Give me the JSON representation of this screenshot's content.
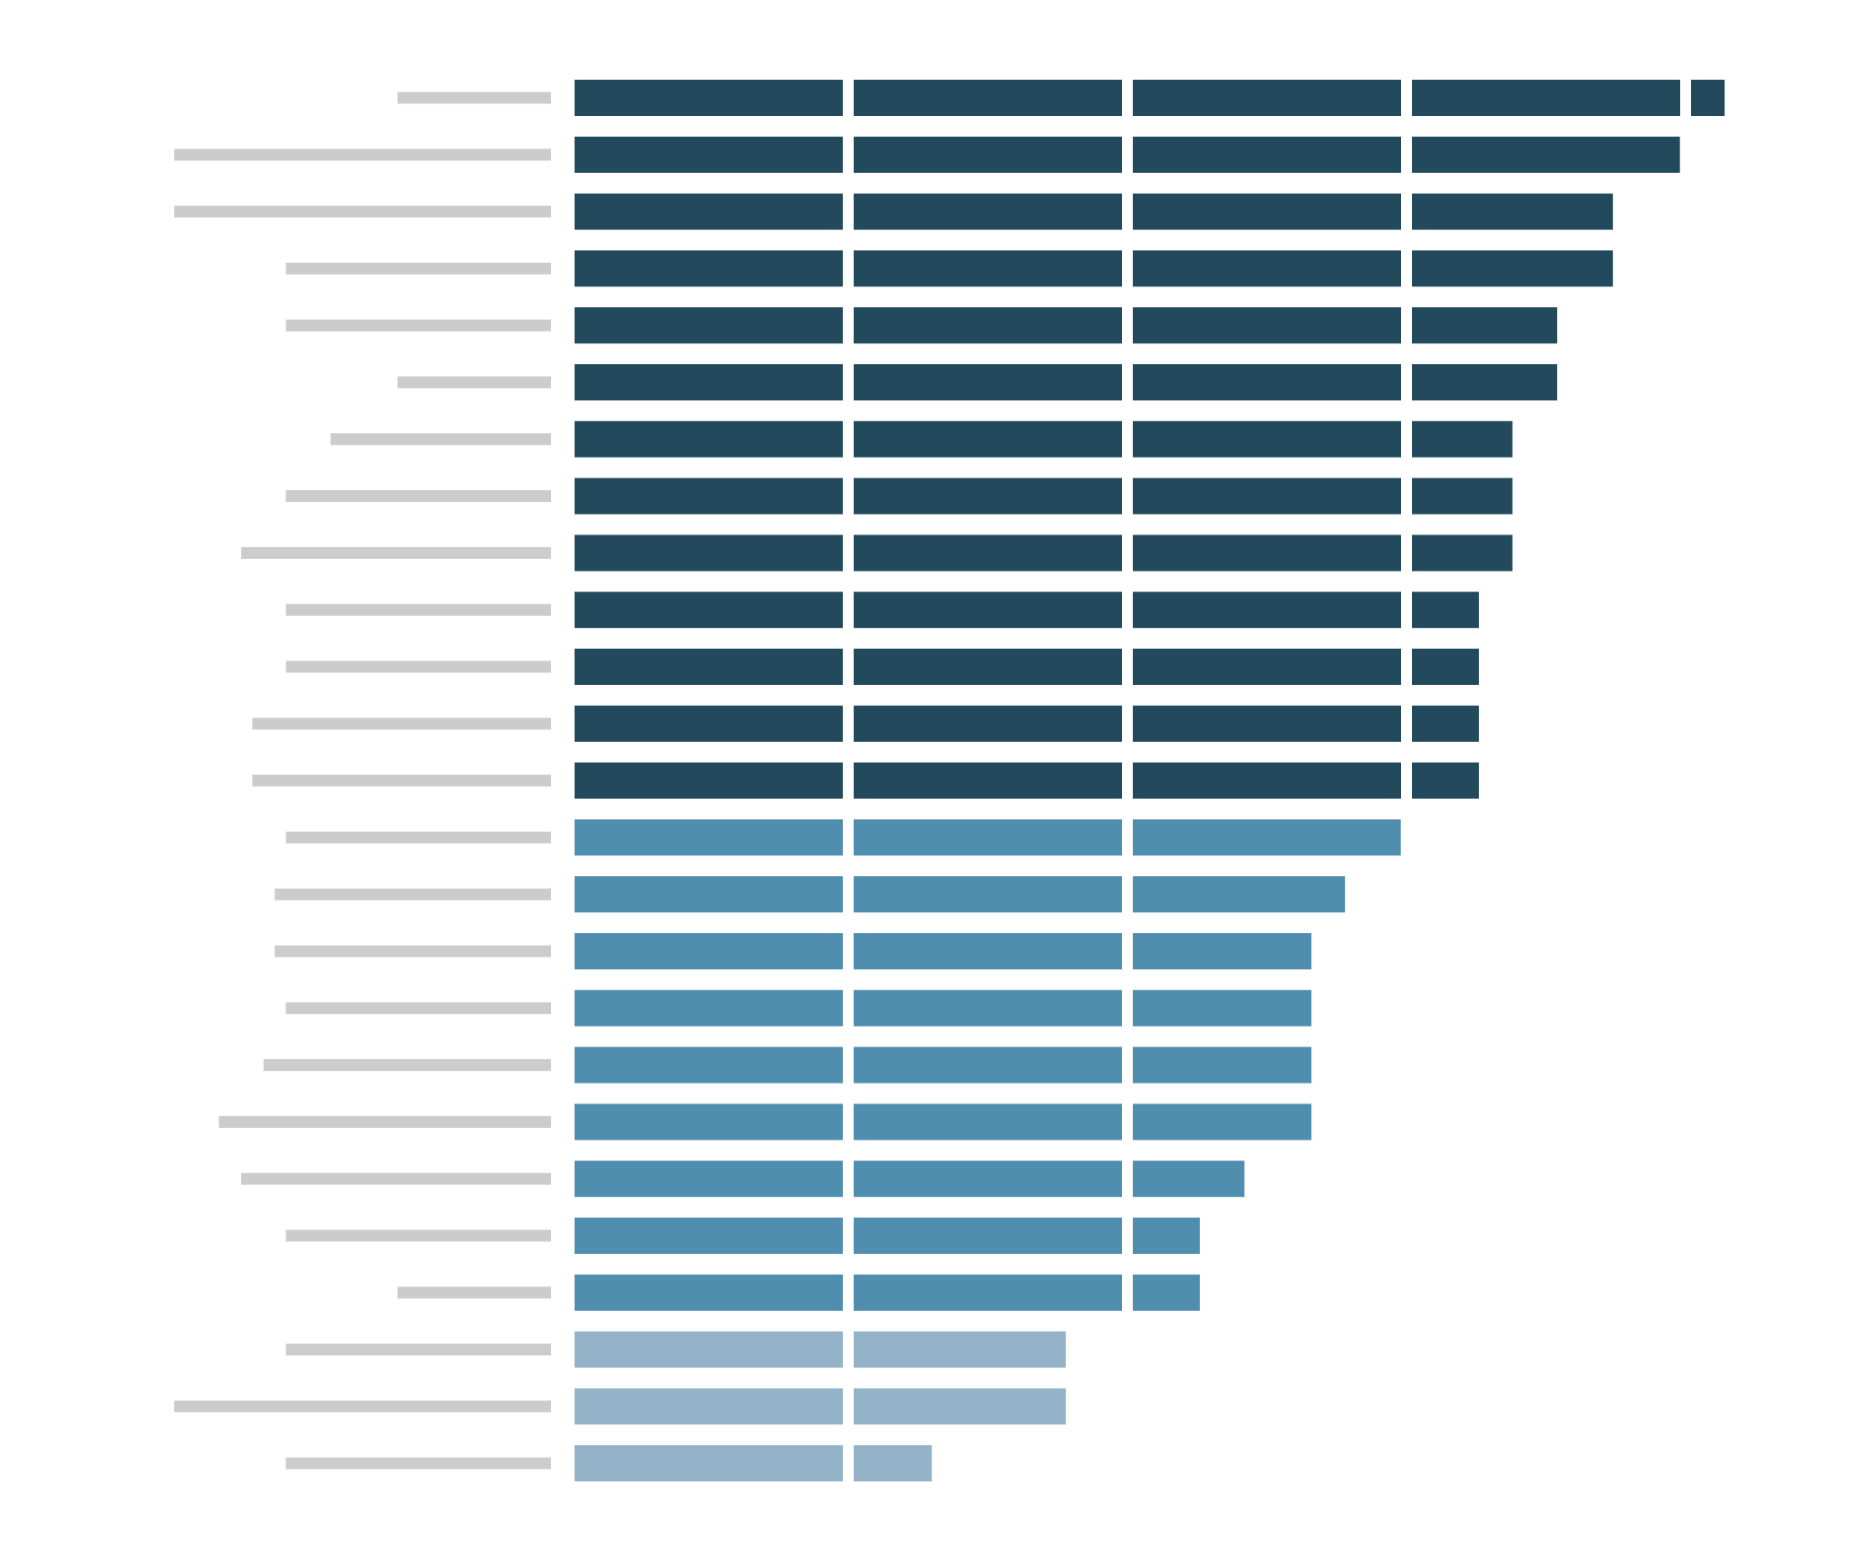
{
  "chart_data": {
    "type": "bar",
    "orientation": "horizontal",
    "stacked_segments": true,
    "segment_unit": 1,
    "grid": false,
    "legend": "none",
    "xlim": [
      0,
      4.2
    ],
    "title": "",
    "xlabel": "",
    "ylabel": "",
    "label_placeholders": true,
    "colors": {
      "dark": "#234a5c",
      "mid": "#4f8eae",
      "light": "#94b3c8",
      "label_placeholder": "#cccccc"
    },
    "bars": [
      {
        "value": 4.12,
        "group": "dark"
      },
      {
        "value": 3.96,
        "group": "dark"
      },
      {
        "value": 3.72,
        "group": "dark"
      },
      {
        "value": 3.72,
        "group": "dark"
      },
      {
        "value": 3.52,
        "group": "dark"
      },
      {
        "value": 3.52,
        "group": "dark"
      },
      {
        "value": 3.36,
        "group": "dark"
      },
      {
        "value": 3.36,
        "group": "dark"
      },
      {
        "value": 3.36,
        "group": "dark"
      },
      {
        "value": 3.24,
        "group": "dark"
      },
      {
        "value": 3.24,
        "group": "dark"
      },
      {
        "value": 3.24,
        "group": "dark"
      },
      {
        "value": 3.24,
        "group": "dark"
      },
      {
        "value": 2.96,
        "group": "mid"
      },
      {
        "value": 2.76,
        "group": "mid"
      },
      {
        "value": 2.64,
        "group": "mid"
      },
      {
        "value": 2.64,
        "group": "mid"
      },
      {
        "value": 2.64,
        "group": "mid"
      },
      {
        "value": 2.64,
        "group": "mid"
      },
      {
        "value": 2.4,
        "group": "mid"
      },
      {
        "value": 2.24,
        "group": "mid"
      },
      {
        "value": 2.24,
        "group": "mid"
      },
      {
        "value": 1.76,
        "group": "light"
      },
      {
        "value": 1.76,
        "group": "light"
      },
      {
        "value": 1.28,
        "group": "light"
      }
    ],
    "label_lengths": [
      0.55,
      1.35,
      1.35,
      0.95,
      0.95,
      0.55,
      0.79,
      0.95,
      1.11,
      0.95,
      0.95,
      1.07,
      1.07,
      0.95,
      0.99,
      0.99,
      0.95,
      1.03,
      1.19,
      1.11,
      0.95,
      0.55,
      0.95,
      1.35,
      0.95
    ]
  }
}
